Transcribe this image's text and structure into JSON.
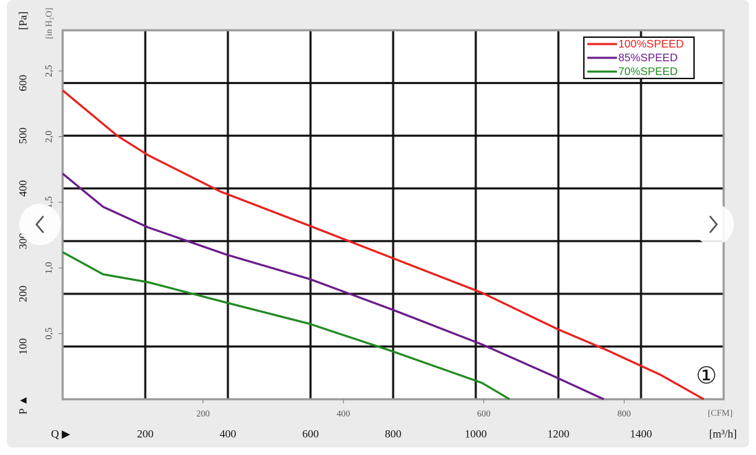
{
  "chart_data": {
    "type": "line",
    "y_label": "[Pa]",
    "y2_label": "[in H₂O]",
    "x_label": "[m³/h]",
    "x2_label": "[CFM]",
    "p_label": "P ▲",
    "q_label": "Q ▶",
    "annotation": "①",
    "xlim": [
      0,
      1600
    ],
    "xticks": [
      200,
      400,
      600,
      800,
      1000,
      1200,
      1400
    ],
    "ylim": [
      0,
      700
    ],
    "yticks": [
      100,
      200,
      300,
      400,
      500,
      600
    ],
    "x2lim": [
      0,
      941.7
    ],
    "x2ticks": [
      200,
      400,
      600,
      800
    ],
    "y2lim": [
      0,
      2.81
    ],
    "y2ticks": [
      {
        "value": 0.5,
        "label": "0,5"
      },
      {
        "value": 1.0,
        "label": "1,0"
      },
      {
        "value": 1.5,
        "label": "1,5"
      },
      {
        "value": 2.0,
        "label": "2,0"
      },
      {
        "value": 2.5,
        "label": "2,5"
      }
    ],
    "grid": true,
    "legend": "top-right",
    "series": [
      {
        "name": "100%SPEED",
        "color": "#e8201c",
        "x": [
          0,
          132,
          207,
          382,
          598,
          798,
          1015,
          1198,
          1315,
          1448,
          1552
        ],
        "values": [
          586,
          500,
          463,
          394,
          329,
          268,
          202,
          133,
          94,
          46,
          0
        ]
      },
      {
        "name": "85%SPEED",
        "color": "#6a1b8a",
        "x": [
          0,
          98,
          207,
          398,
          598,
          798,
          1015,
          1182,
          1310
        ],
        "values": [
          428,
          365,
          326,
          274,
          228,
          170,
          104,
          46,
          0
        ]
      },
      {
        "name": "70%SPEED",
        "color": "#1f8a1f",
        "x": [
          0,
          98,
          207,
          398,
          598,
          798,
          1015,
          1082
        ],
        "values": [
          279,
          237,
          222,
          183,
          143,
          91,
          31,
          0
        ]
      }
    ]
  }
}
